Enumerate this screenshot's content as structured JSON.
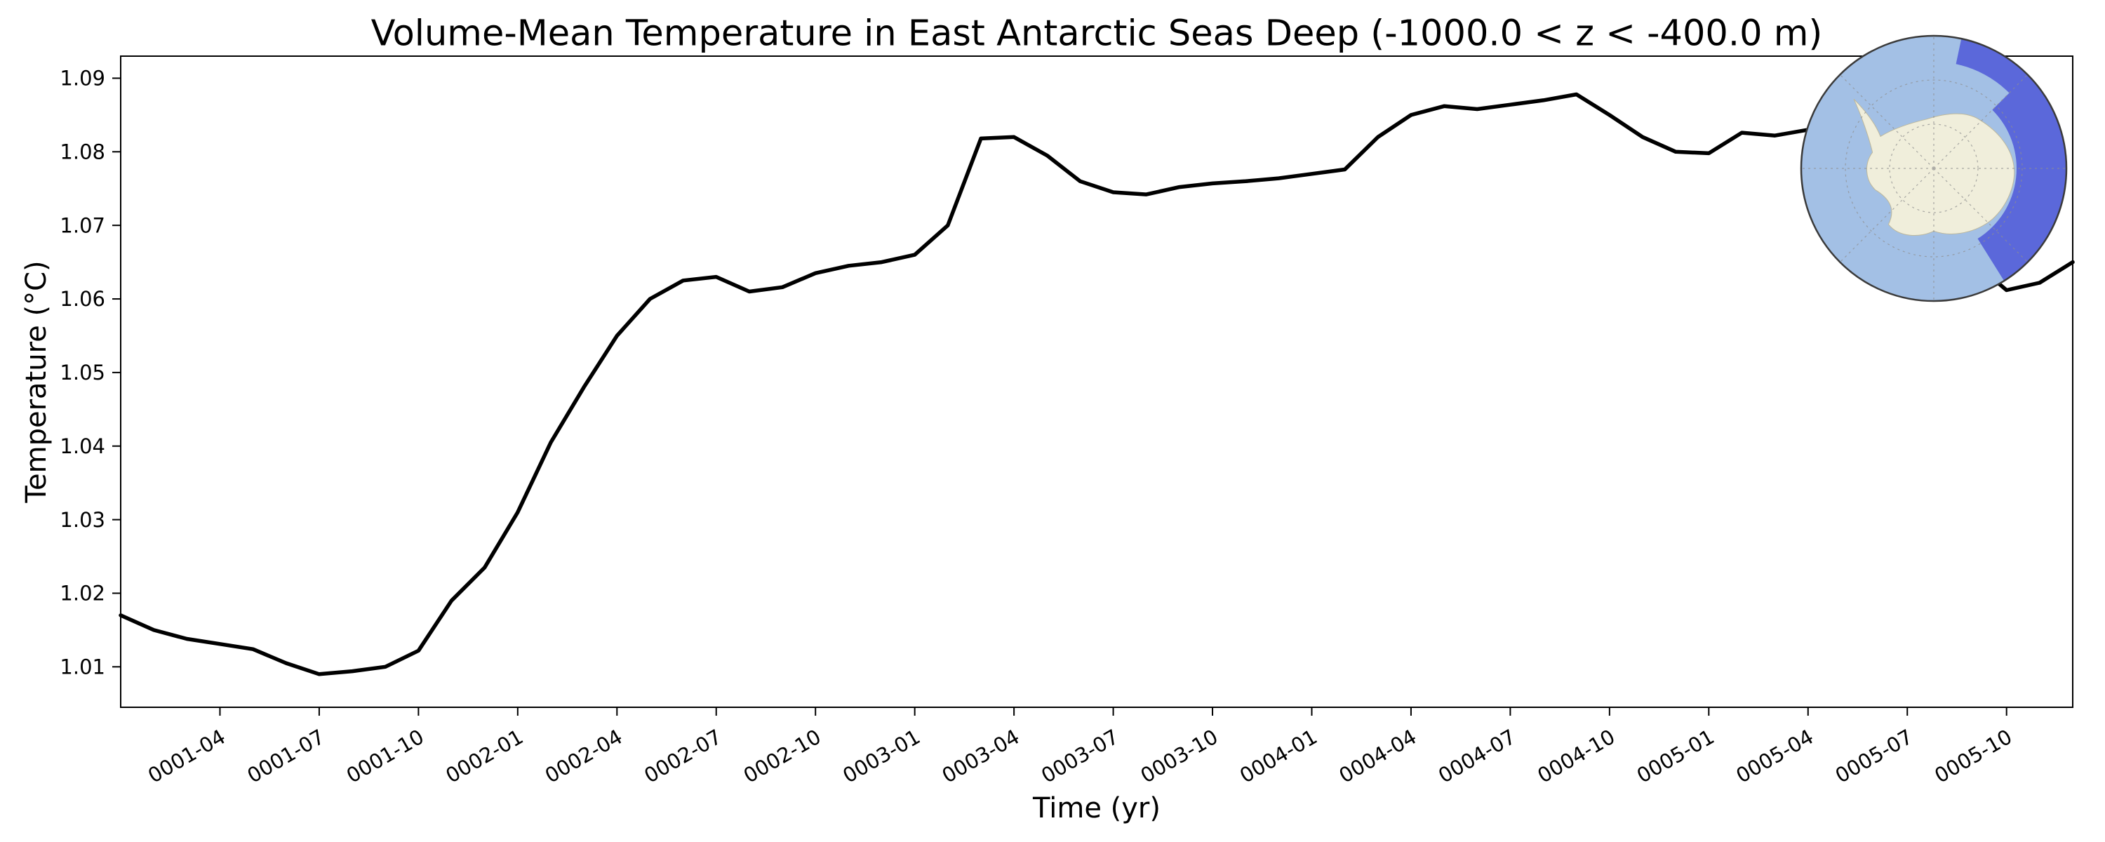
{
  "figure": {
    "background": "#ffffff"
  },
  "chart_data": {
    "type": "line",
    "title": "Volume-Mean Temperature in East Antarctic Seas Deep (-1000.0 < z < -400.0 m)",
    "xlabel": "Time (yr)",
    "ylabel": "Temperature (°C)",
    "ylim": [
      1.0045,
      1.093
    ],
    "x_range": [
      "0001-01",
      "0005-12"
    ],
    "y_ticks": [
      1.01,
      1.02,
      1.03,
      1.04,
      1.05,
      1.06,
      1.07,
      1.08,
      1.09
    ],
    "x_ticks": [
      "0001-04",
      "0001-07",
      "0001-10",
      "0002-01",
      "0002-04",
      "0002-07",
      "0002-10",
      "0003-01",
      "0003-04",
      "0003-07",
      "0003-10",
      "0004-01",
      "0004-04",
      "0004-07",
      "0004-10",
      "0005-01",
      "0005-04",
      "0005-07",
      "0005-10"
    ],
    "x": [
      "0001-01",
      "0001-02",
      "0001-03",
      "0001-04",
      "0001-05",
      "0001-06",
      "0001-07",
      "0001-08",
      "0001-09",
      "0001-10",
      "0001-11",
      "0001-12",
      "0002-01",
      "0002-02",
      "0002-03",
      "0002-04",
      "0002-05",
      "0002-06",
      "0002-07",
      "0002-08",
      "0002-09",
      "0002-10",
      "0002-11",
      "0002-12",
      "0003-01",
      "0003-02",
      "0003-03",
      "0003-04",
      "0003-05",
      "0003-06",
      "0003-07",
      "0003-08",
      "0003-09",
      "0003-10",
      "0003-11",
      "0003-12",
      "0004-01",
      "0004-02",
      "0004-03",
      "0004-04",
      "0004-05",
      "0004-06",
      "0004-07",
      "0004-08",
      "0004-09",
      "0004-10",
      "0004-11",
      "0004-12",
      "0005-01",
      "0005-02",
      "0005-03",
      "0005-04",
      "0005-05",
      "0005-06",
      "0005-07",
      "0005-08",
      "0005-09",
      "0005-10",
      "0005-11",
      "0005-12"
    ],
    "values": [
      1.017,
      1.015,
      1.0138,
      1.0131,
      1.0124,
      1.0105,
      1.009,
      1.0094,
      1.01,
      1.0122,
      1.019,
      1.0235,
      1.031,
      1.0405,
      1.048,
      1.055,
      1.06,
      1.0625,
      1.063,
      1.061,
      1.0616,
      1.0635,
      1.0645,
      1.065,
      1.066,
      1.07,
      1.0818,
      1.082,
      1.0795,
      1.076,
      1.0745,
      1.0742,
      1.0752,
      1.0757,
      1.076,
      1.0764,
      1.077,
      1.0776,
      1.082,
      1.085,
      1.0862,
      1.0858,
      1.0864,
      1.087,
      1.0878,
      1.085,
      1.082,
      1.08,
      1.0798,
      1.0826,
      1.0822,
      1.083,
      1.0828,
      1.0818,
      1.0795,
      1.072,
      1.065,
      1.0612,
      1.0622,
      1.065
    ],
    "line_color": "#000000",
    "line_width": 5.5,
    "grid": false,
    "inset": {
      "type": "map",
      "description": "South polar stereographic inset map of Antarctica with the East Antarctic Seas region highlighted",
      "position": "top-right",
      "ocean_color": "#a3c0e5",
      "land_color": "#f0eedb",
      "region_color": "#5b68da",
      "gridline_style": "dashed"
    }
  }
}
